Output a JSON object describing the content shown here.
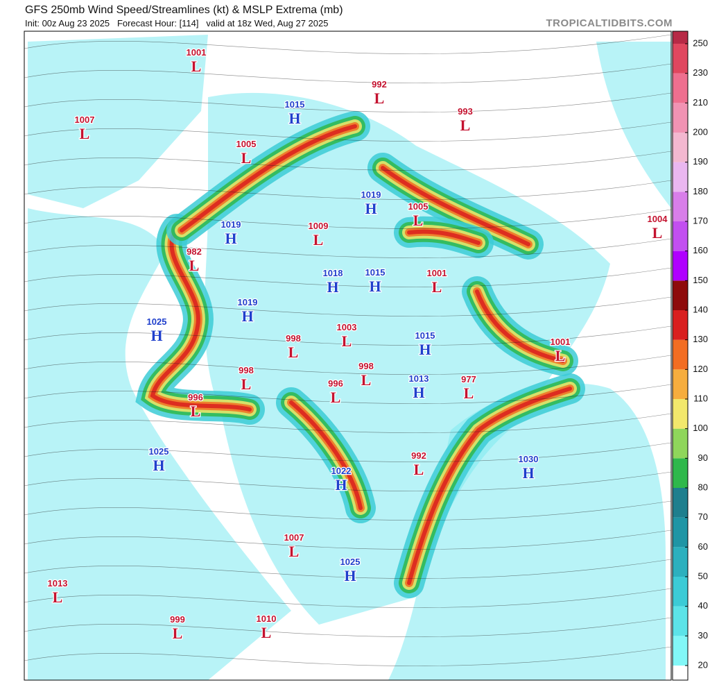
{
  "header": {
    "title": "GFS 250mb Wind Speed/Streamlines (kt) & MSLP Extrema (mb)",
    "subtitle": "Init: 00z Aug 23 2025   Forecast Hour: [114]   valid at 18z Wed, Aug 27 2025",
    "site": "TROPICALTIDBITS.COM"
  },
  "colorbar": {
    "ticks": [
      20,
      30,
      40,
      50,
      60,
      70,
      80,
      90,
      100,
      110,
      120,
      130,
      140,
      150,
      160,
      170,
      180,
      190,
      200,
      210,
      230,
      250
    ],
    "colors": [
      "#82f7f7",
      "#5ce3e8",
      "#3ccbd6",
      "#2cb0be",
      "#1f95a5",
      "#1e7f8e",
      "#2fb84b",
      "#8fd65b",
      "#f2e86c",
      "#f6ad3e",
      "#f26d22",
      "#d91f1f",
      "#8e0b0b",
      "#b000ff",
      "#c24ff0",
      "#d87ee9",
      "#eab7f0",
      "#f3b8d0",
      "#f193b3",
      "#ee6f8f",
      "#e0475f",
      "#b72a46"
    ]
  },
  "centers": [
    {
      "value": 1001,
      "type": "L"
    },
    {
      "value": 992,
      "type": "L"
    },
    {
      "value": 993,
      "type": "L"
    },
    {
      "value": 1007,
      "type": "L"
    },
    {
      "value": 1015,
      "type": "H"
    },
    {
      "value": 1005,
      "type": "L"
    },
    {
      "value": 1019,
      "type": "H"
    },
    {
      "value": 1005,
      "type": "L"
    },
    {
      "value": 1004,
      "type": "L"
    },
    {
      "value": 1019,
      "type": "H"
    },
    {
      "value": 1009,
      "type": "L"
    },
    {
      "value": 982,
      "type": "L"
    },
    {
      "value": 1018,
      "type": "H"
    },
    {
      "value": 1015,
      "type": "H"
    },
    {
      "value": 1001,
      "type": "L"
    },
    {
      "value": 1019,
      "type": "H"
    },
    {
      "value": 1025,
      "type": "H"
    },
    {
      "value": 1003,
      "type": "L"
    },
    {
      "value": 998,
      "type": "L"
    },
    {
      "value": 1015,
      "type": "H"
    },
    {
      "value": 1001,
      "type": "L"
    },
    {
      "value": 998,
      "type": "L"
    },
    {
      "value": 998,
      "type": "L"
    },
    {
      "value": 996,
      "type": "L"
    },
    {
      "value": 1013,
      "type": "H"
    },
    {
      "value": 977,
      "type": "L"
    },
    {
      "value": 996,
      "type": "L"
    },
    {
      "value": 1025,
      "type": "H"
    },
    {
      "value": 992,
      "type": "L"
    },
    {
      "value": 1030,
      "type": "H"
    },
    {
      "value": 1022,
      "type": "H"
    },
    {
      "value": 1007,
      "type": "L"
    },
    {
      "value": 1025,
      "type": "H"
    },
    {
      "value": 1013,
      "type": "L"
    },
    {
      "value": 999,
      "type": "L"
    },
    {
      "value": 1010,
      "type": "L"
    }
  ]
}
